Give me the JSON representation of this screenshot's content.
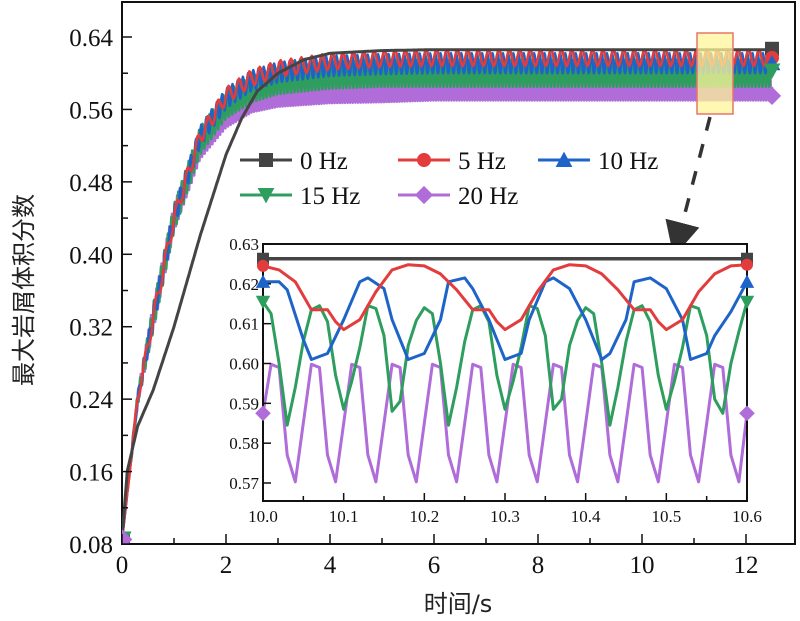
{
  "chart_data": [
    {
      "type": "line",
      "title": "",
      "xlabel": "时间/s",
      "ylabel": "最大岩屑体积分数",
      "xlim": [
        0,
        12.8
      ],
      "ylim": [
        0.08,
        0.66
      ],
      "xticks": [
        0,
        2,
        4,
        6,
        8,
        10,
        12
      ],
      "xtick_labels": [
        "0",
        "2",
        "4",
        "6",
        "8",
        "10",
        "12"
      ],
      "yticks": [
        0.08,
        0.16,
        0.24,
        0.32,
        0.4,
        0.48,
        0.56,
        0.64
      ],
      "ytick_labels": [
        "0.08",
        "0.16",
        "0.24",
        "0.32",
        "0.40",
        "0.48",
        "0.56",
        "0.64"
      ],
      "grid": false,
      "legend_position": "center-top (inside, 3 columns)",
      "series": [
        {
          "name": "0 Hz",
          "color": "#444444",
          "marker": "square",
          "frequency_hz": 0,
          "x": [
            0,
            0.1,
            0.3,
            0.6,
            1.0,
            1.5,
            2.0,
            2.3,
            2.6,
            3.0,
            3.5,
            4.0,
            5.0,
            6.0,
            8.0,
            10.0,
            12.0,
            12.5
          ],
          "y": [
            0.085,
            0.16,
            0.21,
            0.25,
            0.32,
            0.42,
            0.51,
            0.55,
            0.58,
            0.6,
            0.615,
            0.622,
            0.625,
            0.626,
            0.626,
            0.626,
            0.626,
            0.626
          ]
        },
        {
          "name": "5 Hz",
          "color": "#e23c3c",
          "marker": "circle",
          "frequency_hz": 5,
          "osc_amplitude": 0.009,
          "x": [
            0,
            0.3,
            0.6,
            1.0,
            1.5,
            2.0,
            2.5,
            3.0,
            4.0,
            5.0,
            6.0,
            8.0,
            10.0,
            12.0,
            12.5
          ],
          "y_mean": [
            0.085,
            0.24,
            0.33,
            0.44,
            0.53,
            0.575,
            0.595,
            0.605,
            0.613,
            0.616,
            0.617,
            0.617,
            0.617,
            0.617,
            0.617
          ]
        },
        {
          "name": "10 Hz",
          "color": "#1e64c8",
          "marker": "triangle-up",
          "frequency_hz": 10,
          "osc_amplitude": 0.011,
          "x": [
            0,
            0.3,
            0.6,
            1.0,
            1.5,
            2.0,
            2.5,
            3.0,
            4.0,
            5.0,
            6.0,
            8.0,
            10.0,
            12.0,
            12.5
          ],
          "y_mean": [
            0.085,
            0.24,
            0.33,
            0.44,
            0.53,
            0.572,
            0.592,
            0.601,
            0.608,
            0.61,
            0.611,
            0.611,
            0.611,
            0.611,
            0.611
          ]
        },
        {
          "name": "15 Hz",
          "color": "#2e9e5e",
          "marker": "triangle-down",
          "frequency_hz": 15,
          "osc_amplitude": 0.015,
          "x": [
            0,
            0.3,
            0.6,
            1.0,
            1.5,
            2.0,
            2.5,
            3.0,
            4.0,
            5.0,
            6.0,
            8.0,
            10.0,
            12.0,
            12.5
          ],
          "y_mean": [
            0.085,
            0.24,
            0.33,
            0.44,
            0.525,
            0.565,
            0.583,
            0.592,
            0.598,
            0.6,
            0.6,
            0.6,
            0.6,
            0.6,
            0.6
          ]
        },
        {
          "name": "20 Hz",
          "color": "#b06cd8",
          "marker": "diamond",
          "frequency_hz": 20,
          "osc_amplitude": 0.015,
          "x": [
            0,
            0.3,
            0.6,
            1.0,
            1.5,
            2.0,
            2.5,
            3.0,
            4.0,
            5.0,
            6.0,
            8.0,
            10.0,
            12.0,
            12.5
          ],
          "y_mean": [
            0.085,
            0.24,
            0.33,
            0.44,
            0.52,
            0.555,
            0.572,
            0.578,
            0.582,
            0.583,
            0.585,
            0.585,
            0.585,
            0.585,
            0.585
          ]
        }
      ],
      "annotations": [
        {
          "type": "highlight-rectangle",
          "x_range": [
            11.1,
            11.8
          ],
          "y_range": [
            0.56,
            0.64
          ],
          "fill": "#fff59a",
          "stroke": "#e8756a"
        },
        {
          "type": "dashed-arrow",
          "from": "highlight-rectangle",
          "to": "inset"
        }
      ]
    },
    {
      "type": "line",
      "role": "inset",
      "title": "",
      "xlim": [
        10.0,
        10.6
      ],
      "ylim": [
        0.565,
        0.63
      ],
      "xticks": [
        10.0,
        10.1,
        10.2,
        10.3,
        10.4,
        10.5,
        10.6
      ],
      "xtick_labels": [
        "10.0",
        "10.1",
        "10.2",
        "10.3",
        "10.4",
        "10.5",
        "10.6"
      ],
      "yticks": [
        0.57,
        0.58,
        0.59,
        0.6,
        0.61,
        0.62,
        0.63
      ],
      "ytick_labels": [
        "0.57",
        "0.58",
        "0.59",
        "0.60",
        "0.61",
        "0.62",
        "0.63"
      ],
      "series": [
        {
          "name": "0 Hz",
          "color": "#444444",
          "x": [
            10.0,
            10.6
          ],
          "y": [
            0.6263,
            0.6263
          ]
        },
        {
          "name": "5 Hz",
          "color": "#e23c3c",
          "x": [
            10.0,
            10.02,
            10.04,
            10.06,
            10.08,
            10.09,
            10.1,
            10.12,
            10.14,
            10.16,
            10.18,
            10.2,
            10.22,
            10.24,
            10.26,
            10.28,
            10.29,
            10.3,
            10.32,
            10.34,
            10.36,
            10.38,
            10.4,
            10.42,
            10.44,
            10.46,
            10.48,
            10.49,
            10.5,
            10.52,
            10.54,
            10.56,
            10.58,
            10.6
          ],
          "y": [
            0.6245,
            0.6235,
            0.6205,
            0.6135,
            0.6135,
            0.6105,
            0.6085,
            0.611,
            0.618,
            0.6235,
            0.6248,
            0.6245,
            0.6225,
            0.6185,
            0.6135,
            0.6135,
            0.6105,
            0.6085,
            0.611,
            0.618,
            0.6235,
            0.6248,
            0.6245,
            0.6225,
            0.6185,
            0.6135,
            0.6135,
            0.6105,
            0.6085,
            0.611,
            0.618,
            0.6225,
            0.6245,
            0.6248
          ]
        },
        {
          "name": "10 Hz",
          "color": "#1e64c8",
          "x": [
            10.0,
            10.02,
            10.03,
            10.05,
            10.06,
            10.08,
            10.1,
            10.12,
            10.13,
            10.15,
            10.16,
            10.18,
            10.2,
            10.22,
            10.23,
            10.25,
            10.26,
            10.28,
            10.3,
            10.32,
            10.33,
            10.35,
            10.36,
            10.38,
            10.4,
            10.42,
            10.43,
            10.45,
            10.46,
            10.48,
            10.5,
            10.52,
            10.53,
            10.55,
            10.56,
            10.58,
            10.6
          ],
          "y": [
            0.6205,
            0.6205,
            0.6185,
            0.606,
            0.601,
            0.6025,
            0.611,
            0.6205,
            0.6215,
            0.6188,
            0.611,
            0.601,
            0.6025,
            0.611,
            0.6205,
            0.6215,
            0.6188,
            0.611,
            0.601,
            0.6025,
            0.611,
            0.6205,
            0.6215,
            0.6188,
            0.611,
            0.601,
            0.6025,
            0.611,
            0.6205,
            0.6215,
            0.6188,
            0.611,
            0.601,
            0.6025,
            0.607,
            0.613,
            0.6205
          ]
        },
        {
          "name": "15 Hz",
          "color": "#2e9e5e",
          "x": [
            10.0,
            10.01,
            10.02,
            10.03,
            10.04,
            10.05,
            10.06,
            10.07,
            10.08,
            10.09,
            10.1,
            10.11,
            10.12,
            10.13,
            10.14,
            10.15,
            10.16,
            10.17,
            10.18,
            10.19,
            10.2,
            10.21,
            10.22,
            10.23,
            10.24,
            10.25,
            10.26,
            10.27,
            10.28,
            10.29,
            10.3,
            10.31,
            10.32,
            10.33,
            10.34,
            10.35,
            10.36,
            10.37,
            10.38,
            10.39,
            10.4,
            10.41,
            10.42,
            10.43,
            10.44,
            10.45,
            10.46,
            10.47,
            10.48,
            10.49,
            10.5,
            10.51,
            10.52,
            10.53,
            10.54,
            10.55,
            10.56,
            10.57,
            10.58,
            10.59,
            10.6
          ],
          "y": [
            0.6155,
            0.6125,
            0.6,
            0.5845,
            0.594,
            0.6055,
            0.6135,
            0.6145,
            0.6105,
            0.597,
            0.5885,
            0.5955,
            0.604,
            0.6145,
            0.6138,
            0.607,
            0.588,
            0.5905,
            0.6045,
            0.6108,
            0.614,
            0.6125,
            0.6,
            0.5845,
            0.594,
            0.6055,
            0.6135,
            0.6145,
            0.6105,
            0.597,
            0.5885,
            0.5955,
            0.604,
            0.6145,
            0.6138,
            0.607,
            0.5885,
            0.591,
            0.6045,
            0.6108,
            0.614,
            0.6125,
            0.6,
            0.5845,
            0.594,
            0.6055,
            0.6135,
            0.6145,
            0.6105,
            0.597,
            0.5885,
            0.5955,
            0.604,
            0.6145,
            0.6138,
            0.607,
            0.591,
            0.5875,
            0.6,
            0.608,
            0.6155
          ]
        },
        {
          "name": "20 Hz",
          "color": "#b06cd8",
          "x": [
            10.0,
            10.01,
            10.02,
            10.03,
            10.04,
            10.05,
            10.06,
            10.07,
            10.08,
            10.09,
            10.1,
            10.11,
            10.12,
            10.13,
            10.14,
            10.15,
            10.16,
            10.17,
            10.18,
            10.19,
            10.2,
            10.21,
            10.22,
            10.23,
            10.24,
            10.25,
            10.26,
            10.27,
            10.28,
            10.29,
            10.3,
            10.31,
            10.32,
            10.33,
            10.34,
            10.35,
            10.36,
            10.37,
            10.38,
            10.39,
            10.4,
            10.41,
            10.42,
            10.43,
            10.44,
            10.45,
            10.46,
            10.47,
            10.48,
            10.49,
            10.5,
            10.51,
            10.52,
            10.53,
            10.54,
            10.55,
            10.56,
            10.57,
            10.58,
            10.59,
            10.6
          ],
          "y": [
            0.5875,
            0.5998,
            0.599,
            0.577,
            0.5703,
            0.585,
            0.5998,
            0.599,
            0.577,
            0.5703,
            0.585,
            0.5998,
            0.599,
            0.577,
            0.5703,
            0.585,
            0.5998,
            0.599,
            0.577,
            0.5703,
            0.585,
            0.5998,
            0.599,
            0.577,
            0.5703,
            0.585,
            0.5998,
            0.599,
            0.577,
            0.5703,
            0.585,
            0.5998,
            0.599,
            0.577,
            0.5703,
            0.585,
            0.5998,
            0.599,
            0.577,
            0.5703,
            0.585,
            0.5998,
            0.599,
            0.577,
            0.5703,
            0.585,
            0.5998,
            0.599,
            0.577,
            0.5703,
            0.585,
            0.5998,
            0.599,
            0.577,
            0.5703,
            0.585,
            0.5998,
            0.599,
            0.577,
            0.5703,
            0.5875
          ]
        }
      ]
    }
  ],
  "labels": {
    "xlabel": "时间/s",
    "ylabel": "最大岩屑体积分数",
    "legend": [
      "0 Hz",
      "5 Hz",
      "10 Hz",
      "15 Hz",
      "20 Hz"
    ]
  }
}
